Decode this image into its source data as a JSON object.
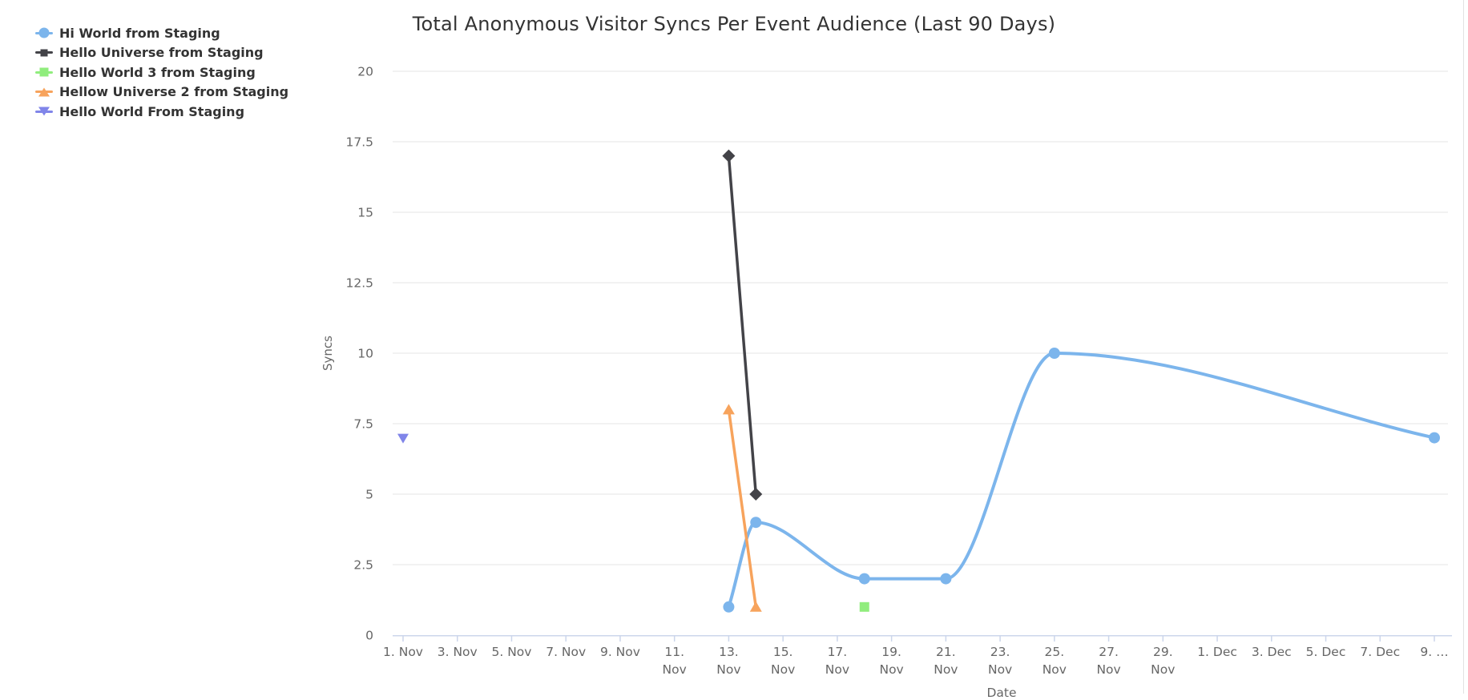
{
  "theme": {
    "background": "#ffffff",
    "title_color": "#333333",
    "axis_label_color": "#666666",
    "legend_text_color": "#333333",
    "grid_color": "#e6e6e6",
    "axis_line_color": "#ccd6eb"
  },
  "chart_data": {
    "type": "line",
    "title": "Total Anonymous Visitor Syncs Per Event Audience (Last 90 Days)",
    "xlabel": "Date",
    "ylabel": "Syncs",
    "ylim": [
      0,
      20
    ],
    "grid": true,
    "legend_position": "top-left",
    "y_ticks": [
      {
        "v": 0,
        "label": "0"
      },
      {
        "v": 2.5,
        "label": "2.5"
      },
      {
        "v": 5,
        "label": "5"
      },
      {
        "v": 7.5,
        "label": "7.5"
      },
      {
        "v": 10,
        "label": "10"
      },
      {
        "v": 12.5,
        "label": "12.5"
      },
      {
        "v": 15,
        "label": "15"
      },
      {
        "v": 17.5,
        "label": "17.5"
      },
      {
        "v": 20,
        "label": "20"
      }
    ],
    "x_ticks": [
      {
        "day": 0,
        "label": "1. Nov",
        "lines": [
          "1. Nov"
        ]
      },
      {
        "day": 2,
        "label": "3. Nov",
        "lines": [
          "3. Nov"
        ]
      },
      {
        "day": 4,
        "label": "5. Nov",
        "lines": [
          "5. Nov"
        ]
      },
      {
        "day": 6,
        "label": "7. Nov",
        "lines": [
          "7. Nov"
        ]
      },
      {
        "day": 8,
        "label": "9. Nov",
        "lines": [
          "9. Nov"
        ]
      },
      {
        "day": 10,
        "label": "11. Nov",
        "lines": [
          "11.",
          "Nov"
        ]
      },
      {
        "day": 12,
        "label": "13. Nov",
        "lines": [
          "13.",
          "Nov"
        ]
      },
      {
        "day": 14,
        "label": "15. Nov",
        "lines": [
          "15.",
          "Nov"
        ]
      },
      {
        "day": 16,
        "label": "17. Nov",
        "lines": [
          "17.",
          "Nov"
        ]
      },
      {
        "day": 18,
        "label": "19. Nov",
        "lines": [
          "19.",
          "Nov"
        ]
      },
      {
        "day": 20,
        "label": "21. Nov",
        "lines": [
          "21.",
          "Nov"
        ]
      },
      {
        "day": 22,
        "label": "23. Nov",
        "lines": [
          "23.",
          "Nov"
        ]
      },
      {
        "day": 24,
        "label": "25. Nov",
        "lines": [
          "25.",
          "Nov"
        ]
      },
      {
        "day": 26,
        "label": "27. Nov",
        "lines": [
          "27.",
          "Nov"
        ]
      },
      {
        "day": 28,
        "label": "29. Nov",
        "lines": [
          "29.",
          "Nov"
        ]
      },
      {
        "day": 30,
        "label": "1. Dec",
        "lines": [
          "1. Dec"
        ]
      },
      {
        "day": 32,
        "label": "3. Dec",
        "lines": [
          "3. Dec"
        ]
      },
      {
        "day": 34,
        "label": "5. Dec",
        "lines": [
          "5. Dec"
        ]
      },
      {
        "day": 36,
        "label": "7. Dec",
        "lines": [
          "7. Dec"
        ]
      },
      {
        "day": 38,
        "label": "9. …",
        "lines": [
          "9. …"
        ]
      }
    ],
    "series": [
      {
        "name": "Hi World from Staging",
        "color": "#7cb5ec",
        "marker": "circle",
        "line_width": 4,
        "interpolation": "monotone-spline",
        "points": [
          {
            "date": "13. Nov",
            "day": 12,
            "syncs": 1
          },
          {
            "date": "14. Nov",
            "day": 13,
            "syncs": 4
          },
          {
            "date": "18. Nov",
            "day": 17,
            "syncs": 2
          },
          {
            "date": "21. Nov",
            "day": 20,
            "syncs": 2
          },
          {
            "date": "25. Nov",
            "day": 24,
            "syncs": 10
          },
          {
            "date": "9. Dec",
            "day": 38,
            "syncs": 7
          }
        ]
      },
      {
        "name": "Hello Universe from Staging",
        "color": "#434348",
        "marker": "diamond",
        "line_width": 3.5,
        "interpolation": "monotone-spline",
        "points": [
          {
            "date": "13. Nov",
            "day": 12,
            "syncs": 17
          },
          {
            "date": "14. Nov",
            "day": 13,
            "syncs": 5
          }
        ]
      },
      {
        "name": "Hello World 3 from Staging",
        "color": "#90ed7d",
        "marker": "square",
        "line_width": 3.5,
        "interpolation": "monotone-spline",
        "points": [
          {
            "date": "18. Nov",
            "day": 17,
            "syncs": 1
          }
        ]
      },
      {
        "name": "Hellow Universe 2 from Staging",
        "color": "#f7a35c",
        "marker": "triangle-up",
        "line_width": 3.5,
        "interpolation": "monotone-spline",
        "points": [
          {
            "date": "13. Nov",
            "day": 12,
            "syncs": 8
          },
          {
            "date": "14. Nov",
            "day": 13,
            "syncs": 1
          }
        ]
      },
      {
        "name": "Hello World From Staging",
        "color": "#8085e9",
        "marker": "triangle-down",
        "line_width": 3.5,
        "interpolation": "monotone-spline",
        "points": [
          {
            "date": "1. Nov",
            "day": 0,
            "syncs": 7
          }
        ]
      }
    ]
  }
}
